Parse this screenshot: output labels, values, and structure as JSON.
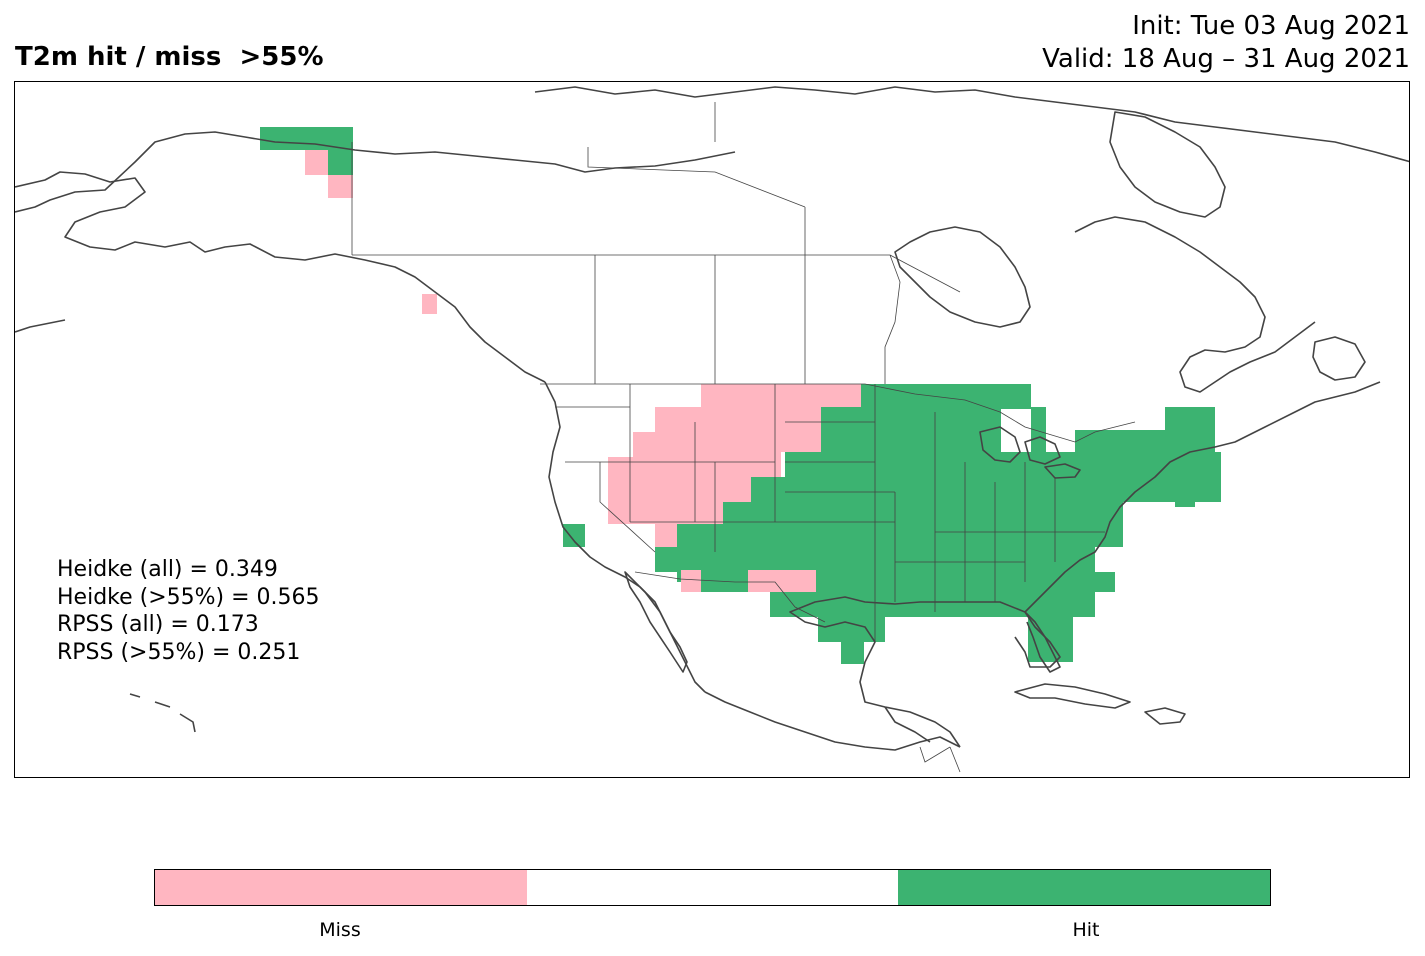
{
  "header": {
    "title": "T2m hit / miss  >55%",
    "init": "Init: Tue 03 Aug 2021",
    "valid": "Valid: 18 Aug – 31 Aug 2021"
  },
  "scores": [
    "Heidke (all) = 0.349",
    "Heidke (>55%) = 0.565",
    "RPSS (all) = 0.173",
    "RPSS (>55%) = 0.251"
  ],
  "legend": {
    "labels": [
      "Miss",
      "Hit"
    ],
    "colors": {
      "miss": "#ffb6c1",
      "neutral": "#ffffff",
      "hit": "#3cb371"
    }
  },
  "colors": {
    "coastline": "#444444",
    "border": "#000000"
  }
}
